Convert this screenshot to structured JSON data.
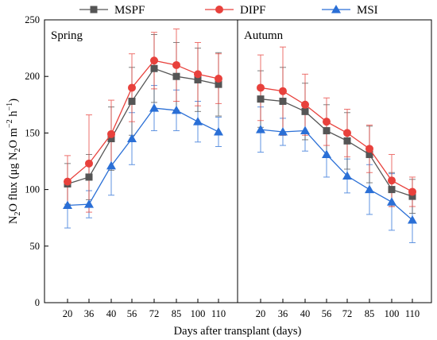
{
  "chart_data": {
    "type": "line",
    "legend": {
      "placement": "top",
      "entries": [
        {
          "name": "MSPF",
          "color": "#555555",
          "marker": "square"
        },
        {
          "name": "DIPF",
          "color": "#e8413c",
          "marker": "circle"
        },
        {
          "name": "MSI",
          "color": "#2a6fd6",
          "marker": "triangle"
        }
      ]
    },
    "ylabel": {
      "pre": "N",
      "s1": "2",
      "mid": "O flux  (μg N",
      "s2": "2",
      "mid2": "O m",
      "s3": "−2",
      "mid3": " h",
      "s4": "−1",
      "post": ")"
    },
    "xlabel": "Days after transplant (days)",
    "ylim": [
      0,
      250
    ],
    "yticks": [
      0,
      50,
      100,
      150,
      200,
      250
    ],
    "categories": [
      "20",
      "36",
      "40",
      "56",
      "72",
      "85",
      "100",
      "110"
    ],
    "panels": [
      {
        "name": "Spring",
        "series": [
          {
            "name": "MSPF",
            "values": [
              105,
              111,
              145,
              178,
              207,
              200,
              197,
              193
            ],
            "errors": [
              18,
              20,
              28,
              30,
              30,
              30,
              28,
              28
            ]
          },
          {
            "name": "DIPF",
            "values": [
              107,
              123,
              149,
              190,
              214,
              210,
              202,
              198
            ],
            "errors": [
              23,
              43,
              30,
              30,
              25,
              32,
              28,
              22
            ]
          },
          {
            "name": "MSI",
            "values": [
              86,
              87,
              121,
              145,
              172,
              170,
              160,
              151
            ],
            "errors": [
              20,
              12,
              26,
              23,
              20,
              18,
              18,
              13
            ]
          }
        ]
      },
      {
        "name": "Autumn",
        "series": [
          {
            "name": "MSPF",
            "values": [
              180,
              178,
              169,
              152,
              143,
              131,
              100,
              94
            ],
            "errors": [
              25,
              30,
              25,
              23,
              25,
              25,
              15,
              15
            ]
          },
          {
            "name": "DIPF",
            "values": [
              190,
              187,
              175,
              160,
              150,
              136,
              108,
              98
            ],
            "errors": [
              29,
              39,
              27,
              21,
              21,
              21,
              23,
              13
            ]
          },
          {
            "name": "MSI",
            "values": [
              153,
              151,
              152,
              131,
              112,
              100,
              89,
              73
            ],
            "errors": [
              20,
              12,
              18,
              20,
              15,
              22,
              25,
              20
            ]
          }
        ]
      }
    ]
  }
}
